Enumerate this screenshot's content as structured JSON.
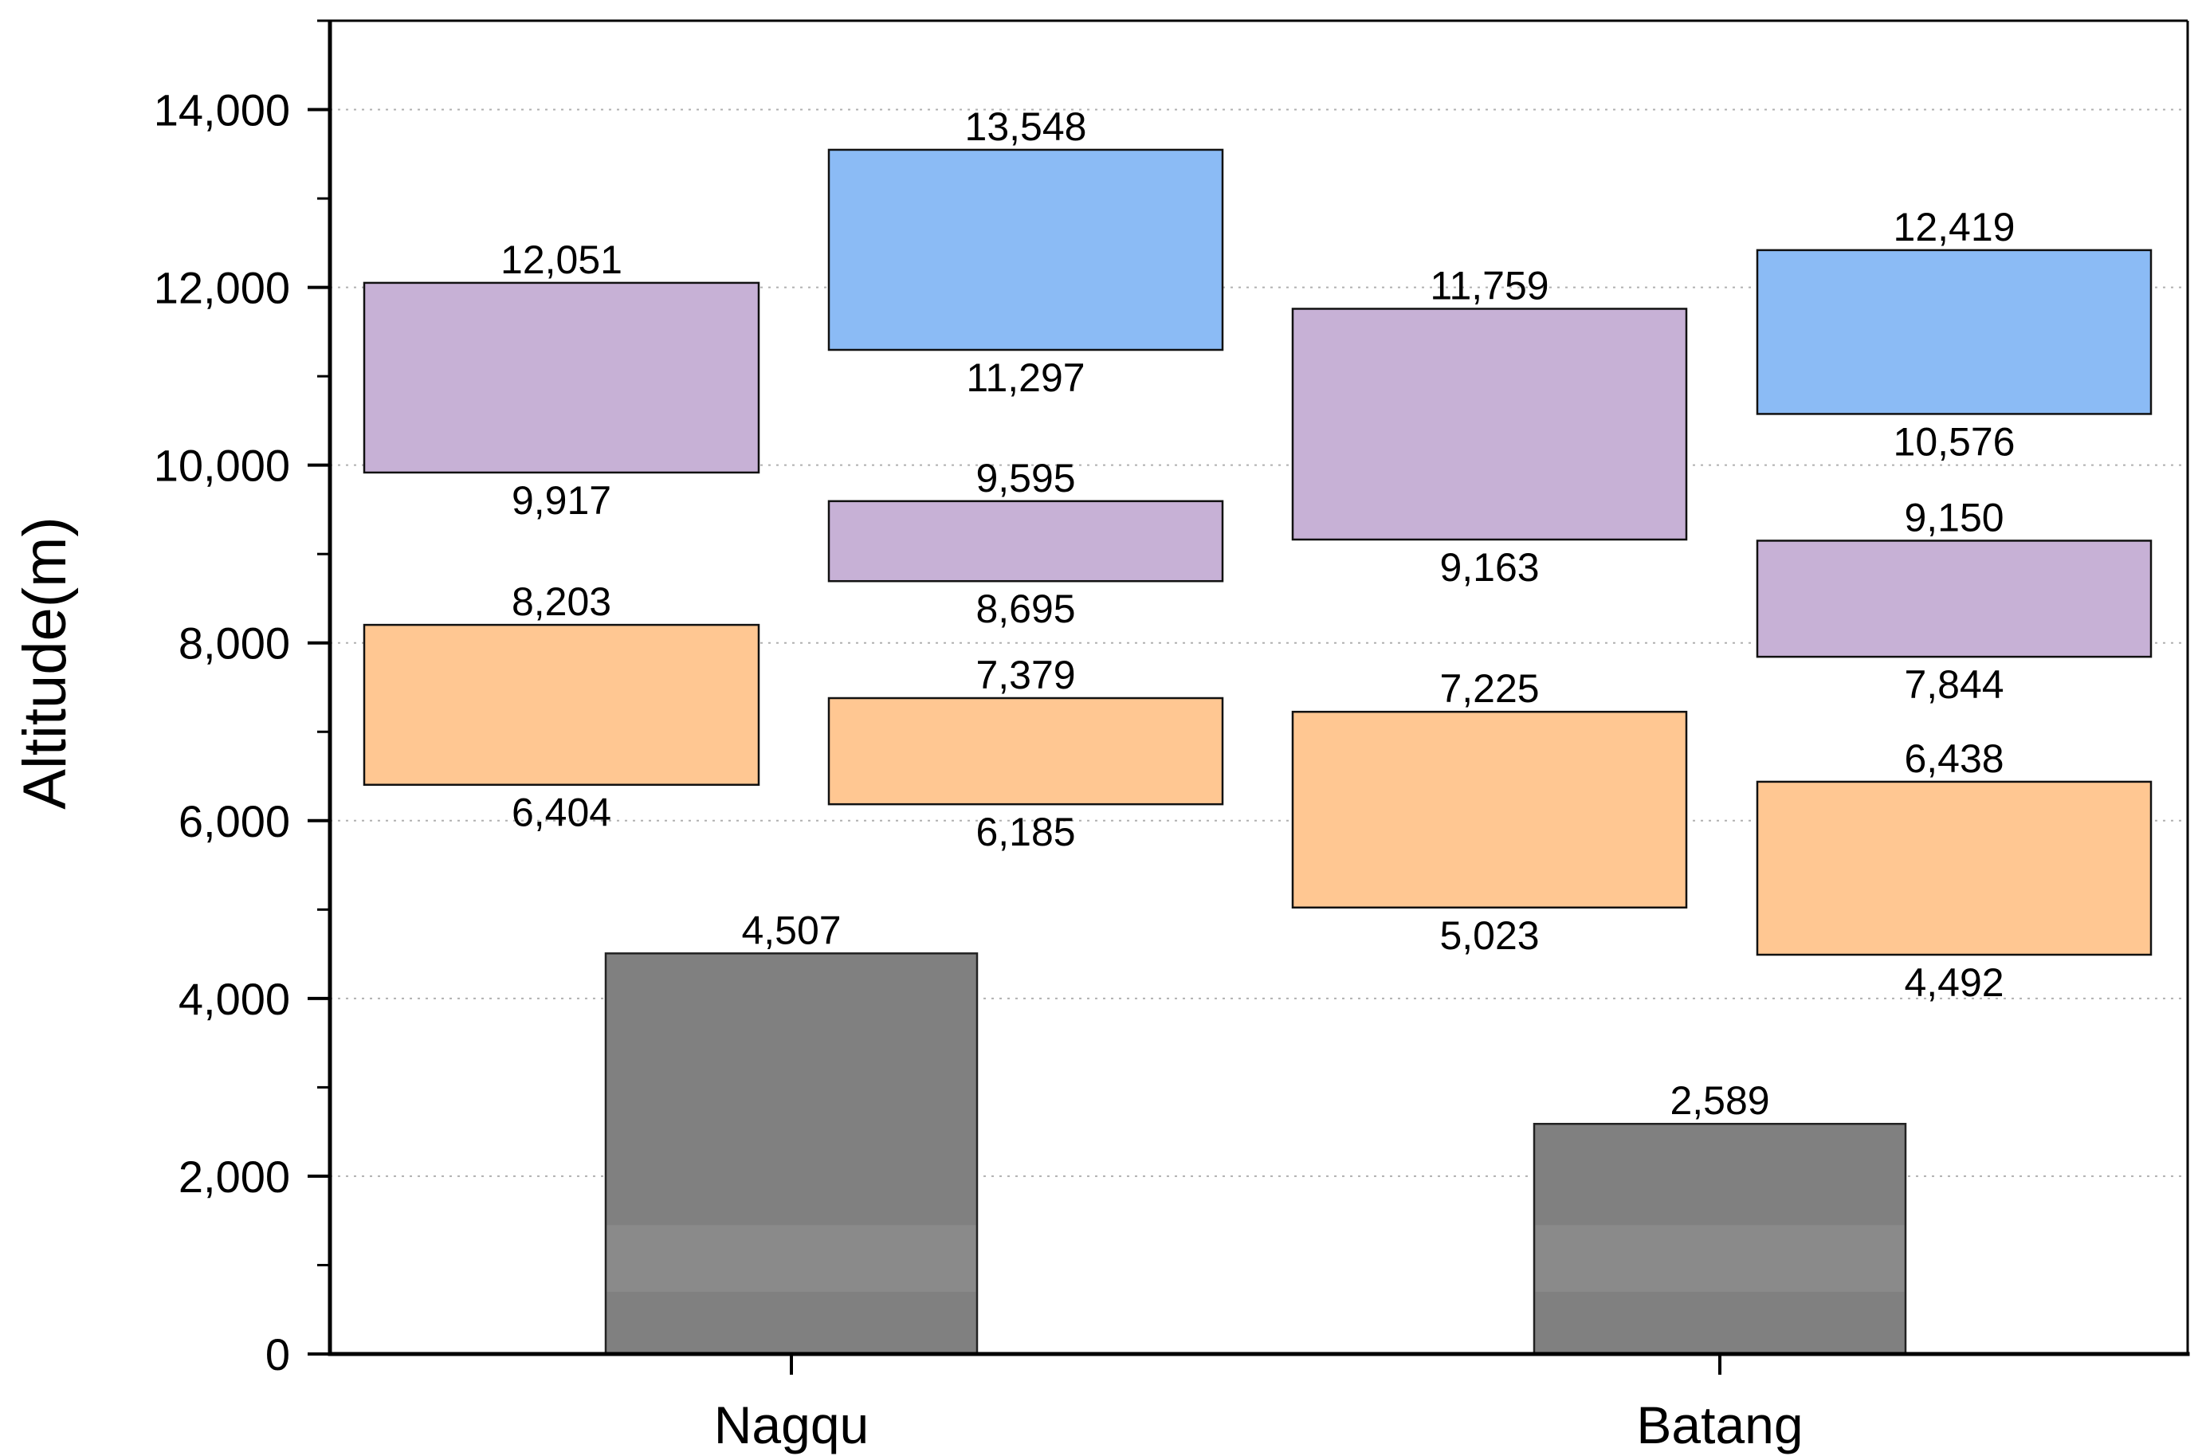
{
  "chart_data": {
    "type": "bar",
    "title": "",
    "xlabel": "",
    "ylabel": "Altitude(m)",
    "ylim": [
      0,
      15000
    ],
    "yticks": [
      0,
      2000,
      4000,
      6000,
      8000,
      10000,
      12000,
      14000
    ],
    "ytick_labels": [
      "0",
      "2,000",
      "4,000",
      "6,000",
      "8,000",
      "10,000",
      "12,000",
      "14,000"
    ],
    "grid": "horizontal dotted",
    "categories": [
      "Nagqu",
      "Batang"
    ],
    "colors": {
      "ground": "#808080",
      "orange": "#FFC792",
      "purple": "#C7B1D6",
      "blue": "#8BBBF5",
      "grid": "#b0b0b0"
    },
    "ground_bars": [
      {
        "category": "Nagqu",
        "value": 4507,
        "label": "4,507"
      },
      {
        "category": "Batang",
        "value": 2589,
        "label": "2,589"
      }
    ],
    "floating_bars": [
      {
        "category": "Nagqu",
        "slot": 0,
        "color": "orange",
        "low": 6404,
        "high": 8203,
        "low_label": "6,404",
        "high_label": "8,203"
      },
      {
        "category": "Nagqu",
        "slot": 0,
        "color": "purple",
        "low": 9917,
        "high": 12051,
        "low_label": "9,917",
        "high_label": "12,051"
      },
      {
        "category": "Nagqu",
        "slot": 1,
        "color": "orange",
        "low": 6185,
        "high": 7379,
        "low_label": "6,185",
        "high_label": "7,379"
      },
      {
        "category": "Nagqu",
        "slot": 1,
        "color": "purple",
        "low": 8695,
        "high": 9595,
        "low_label": "8,695",
        "high_label": "9,595"
      },
      {
        "category": "Nagqu",
        "slot": 1,
        "color": "blue",
        "low": 11297,
        "high": 13548,
        "low_label": "11,297",
        "high_label": "13,548"
      },
      {
        "category": "Batang",
        "slot": 0,
        "color": "orange",
        "low": 5023,
        "high": 7225,
        "low_label": "5,023",
        "high_label": "7,225"
      },
      {
        "category": "Batang",
        "slot": 0,
        "color": "purple",
        "low": 9163,
        "high": 11759,
        "low_label": "9,163",
        "high_label": "11,759"
      },
      {
        "category": "Batang",
        "slot": 1,
        "color": "orange",
        "low": 4492,
        "high": 6438,
        "low_label": "4,492",
        "high_label": "6,438"
      },
      {
        "category": "Batang",
        "slot": 1,
        "color": "purple",
        "low": 7844,
        "high": 9150,
        "low_label": "7,844",
        "high_label": "9,150"
      },
      {
        "category": "Batang",
        "slot": 1,
        "color": "blue",
        "low": 10576,
        "high": 12419,
        "low_label": "10,576",
        "high_label": "12,419"
      }
    ]
  }
}
